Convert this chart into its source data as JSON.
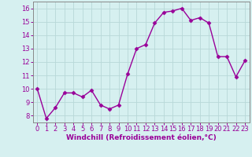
{
  "x": [
    0,
    1,
    2,
    3,
    4,
    5,
    6,
    7,
    8,
    9,
    10,
    11,
    12,
    13,
    14,
    15,
    16,
    17,
    18,
    19,
    20,
    21,
    22,
    23
  ],
  "y": [
    10.0,
    7.8,
    8.6,
    9.7,
    9.7,
    9.4,
    9.9,
    8.8,
    8.5,
    8.8,
    11.1,
    13.0,
    13.3,
    14.9,
    15.7,
    15.8,
    16.0,
    15.1,
    15.3,
    14.9,
    12.4,
    12.4,
    10.9,
    12.1
  ],
  "line_color": "#990099",
  "marker": "D",
  "marker_size": 2.5,
  "background_color": "#d6f0f0",
  "grid_color": "#b8d8d8",
  "xlabel": "Windchill (Refroidissement éolien,°C)",
  "xlabel_fontsize": 6.5,
  "ylim": [
    7.5,
    16.5
  ],
  "xlim": [
    -0.5,
    23.5
  ],
  "yticks": [
    8,
    9,
    10,
    11,
    12,
    13,
    14,
    15,
    16
  ],
  "xticks": [
    0,
    1,
    2,
    3,
    4,
    5,
    6,
    7,
    8,
    9,
    10,
    11,
    12,
    13,
    14,
    15,
    16,
    17,
    18,
    19,
    20,
    21,
    22,
    23
  ],
  "tick_fontsize": 6,
  "line_width": 1.0,
  "spine_color": "#888888"
}
